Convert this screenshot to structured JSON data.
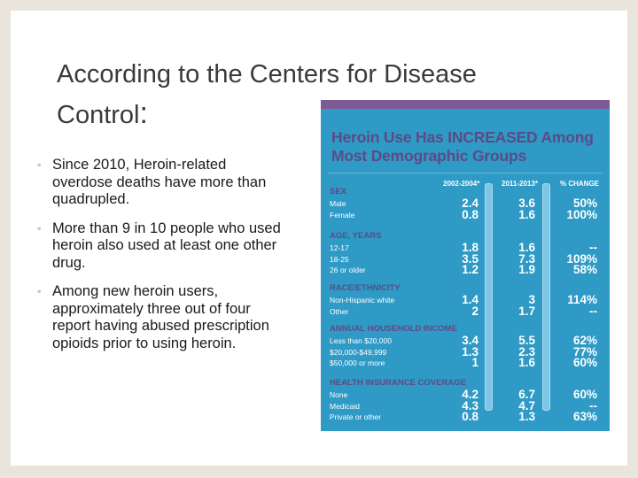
{
  "title": {
    "line1": "According to the Centers for Disease",
    "line2": "Control",
    "colon": ":"
  },
  "bullets": [
    {
      "marker": "◦",
      "text": "Since 2010, Heroin-related overdose deaths have more than quadrupled."
    },
    {
      "marker": "◦",
      "text": "More than 9 in 10 people who used heroin also used at least one other drug."
    },
    {
      "marker": "◦",
      "text": "Among new heroin users, approximately three out of four report having abused prescription opioids prior to using heroin."
    }
  ],
  "infographic": {
    "heading_line1": "Heroin Use Has INCREASED Among",
    "heading_line2": "Most Demographic Groups",
    "columns": [
      "2002-2004*",
      "2011-2013*",
      "% CHANGE"
    ],
    "sections": [
      {
        "name": "SEX",
        "rows": [
          {
            "label": "Male",
            "v1": "2.4",
            "v2": "3.6",
            "change": "50%"
          },
          {
            "label": "Female",
            "v1": "0.8",
            "v2": "1.6",
            "change": "100%"
          }
        ]
      },
      {
        "name": "AGE, YEARS",
        "rows": [
          {
            "label": "12-17",
            "v1": "1.8",
            "v2": "1.6",
            "change": "--"
          },
          {
            "label": "18-25",
            "v1": "3.5",
            "v2": "7.3",
            "change": "109%"
          },
          {
            "label": "26 or older",
            "v1": "1.2",
            "v2": "1.9",
            "change": "58%"
          }
        ]
      },
      {
        "name": "RACE/ETHNICITY",
        "rows": [
          {
            "label": "Non-Hispanic white",
            "v1": "1.4",
            "v2": "3",
            "change": "114%"
          },
          {
            "label": "Other",
            "v1": "2",
            "v2": "1.7",
            "change": "--"
          }
        ]
      },
      {
        "name": "ANNUAL HOUSEHOLD INCOME",
        "rows": [
          {
            "label": "Less than $20,000",
            "v1": "3.4",
            "v2": "5.5",
            "change": "62%"
          },
          {
            "label": "$20,000-$49,999",
            "v1": "1.3",
            "v2": "2.3",
            "change": "77%"
          },
          {
            "label": "$50,000 or more",
            "v1": "1",
            "v2": "1.6",
            "change": "60%"
          }
        ]
      },
      {
        "name": "HEALTH INSURANCE COVERAGE",
        "rows": [
          {
            "label": "None",
            "v1": "4.2",
            "v2": "6.7",
            "change": "60%"
          },
          {
            "label": "Medicaid",
            "v1": "4.3",
            "v2": "4.7",
            "change": "--"
          },
          {
            "label": "Private or other",
            "v1": "0.8",
            "v2": "1.3",
            "change": "63%"
          }
        ]
      }
    ]
  }
}
